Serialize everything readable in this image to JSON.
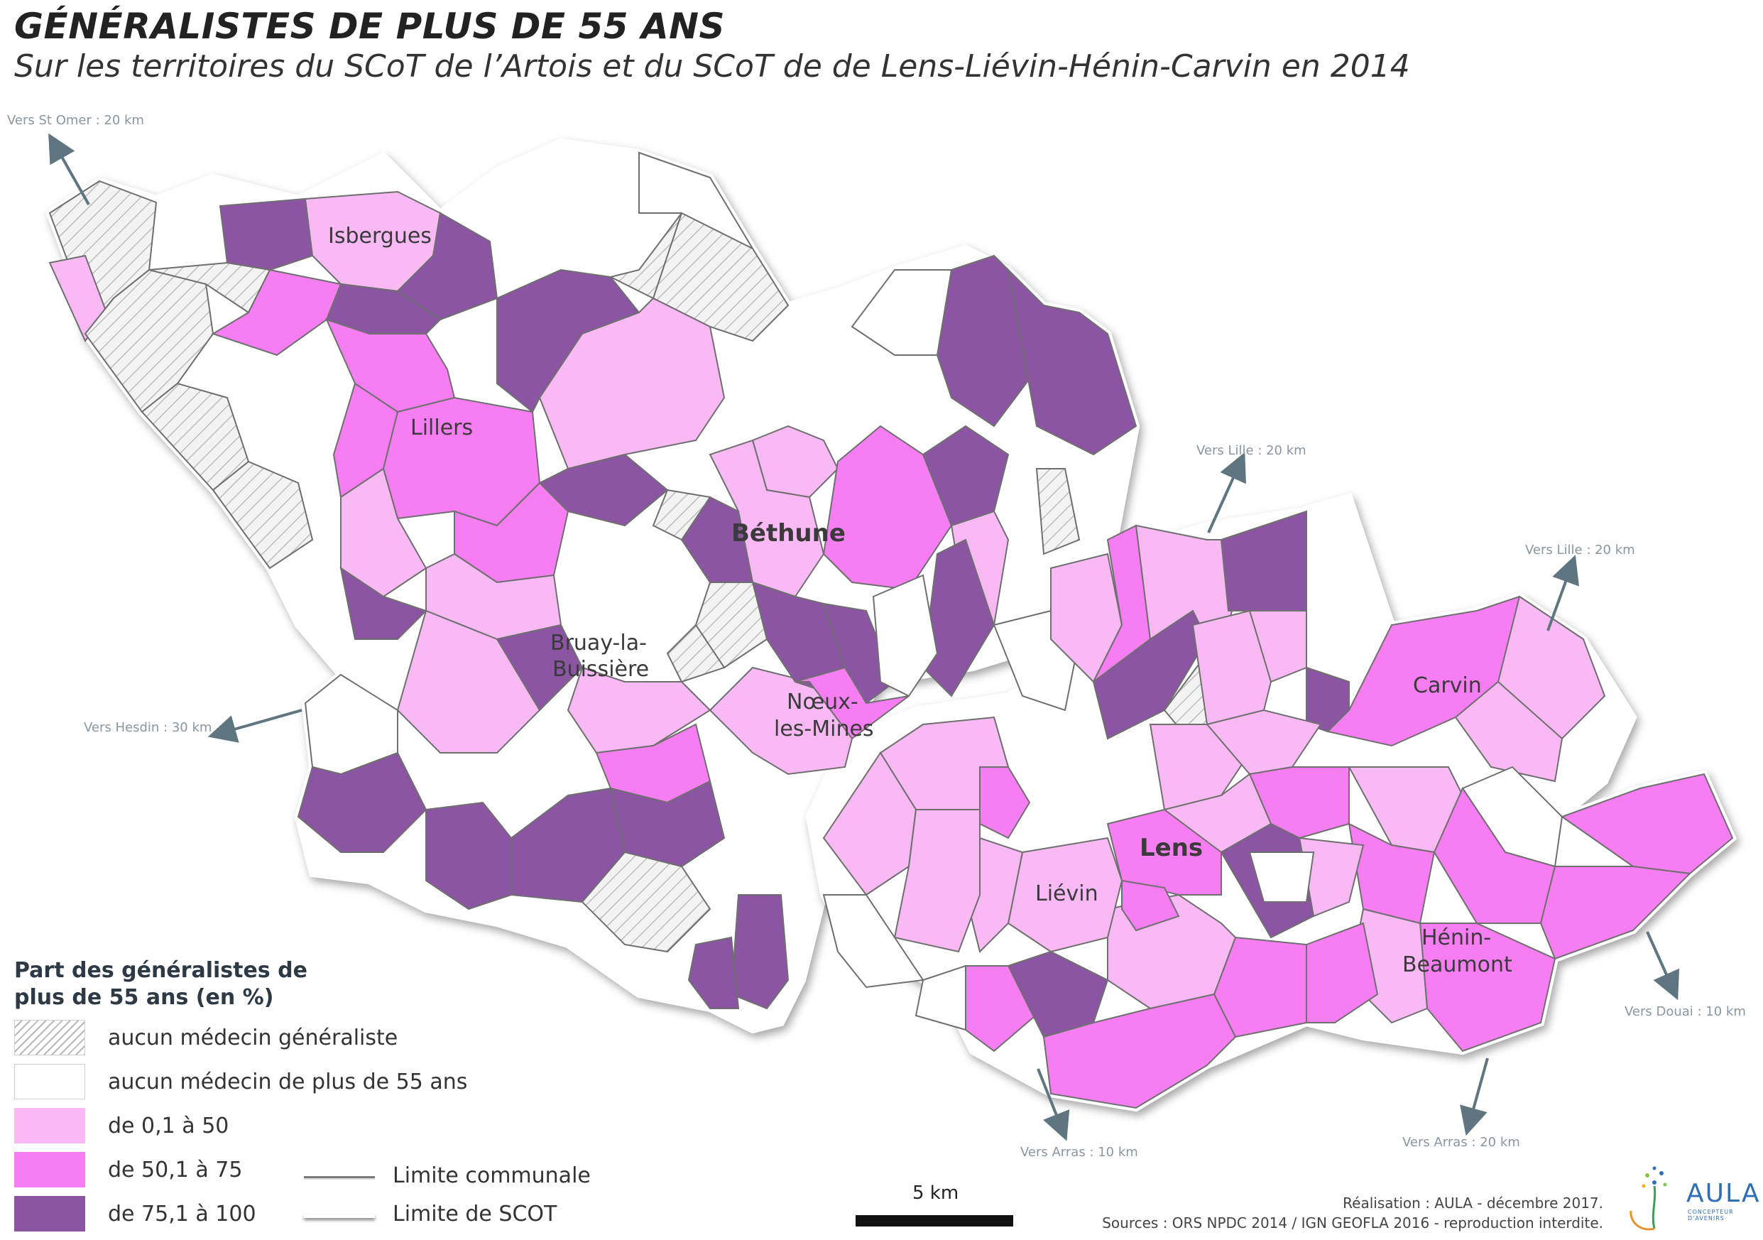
{
  "title": "GÉNÉRALISTES DE PLUS DE 55 ANS",
  "subtitle": "Sur les territoires du SCoT de l’Artois et du SCoT de de Lens-Liévin-Hénin-Carvin en 2014",
  "colors": {
    "no_doctor": "#e4e4e4",
    "none_over_55": "#ffffff",
    "c0_50": "#f8b9f4",
    "c50_75": "#f77ef2",
    "c75_100": "#8b55a4",
    "arrow": "#5f7580",
    "scot_border": "#ffffff",
    "commune_border": "#6f6f6f"
  },
  "places": {
    "isbergues": "Isbergues",
    "lillers": "Lillers",
    "bethune": "Béthune",
    "bruay_1": "Bruay-la-",
    "bruay_2": "Buissière",
    "noeux_1": "Nœux-",
    "noeux_2": "les-Mines",
    "carvin": "Carvin",
    "lens": "Lens",
    "lievin": "Liévin",
    "henin_1": "Hénin-",
    "henin_2": "Beaumont"
  },
  "directions": {
    "st_omer": "Vers St Omer : 20 km",
    "hesdin": "Vers Hesdin : 30 km",
    "lille_1": "Vers Lille : 20 km",
    "lille_2": "Vers Lille : 20 km",
    "douai": "Vers Douai : 10 km",
    "arras_1": "Vers Arras : 10 km",
    "arras_2": "Vers Arras : 20 km"
  },
  "legend": {
    "title": "Part des généralistes de plus de 55 ans (en %)",
    "items": [
      {
        "label": "aucun médecin généraliste"
      },
      {
        "label": "aucun médecin de plus de 55 ans"
      },
      {
        "label": "de 0,1 à 50"
      },
      {
        "label": "de 50,1 à 75"
      },
      {
        "label": "de 75,1 à 100"
      }
    ],
    "lines": [
      {
        "label": "Limite communale"
      },
      {
        "label": "Limite de SCOT"
      }
    ]
  },
  "scale": {
    "label": "5 km"
  },
  "credits": {
    "line1": "Réalisation : AULA - décembre 2017.",
    "line2": "Sources : ORS NPDC 2014 / IGN GEOFLA 2016 - reproduction interdite."
  },
  "logo": {
    "name": "AULA",
    "tagline": "CONCEPTEUR D'AVENIRS"
  }
}
